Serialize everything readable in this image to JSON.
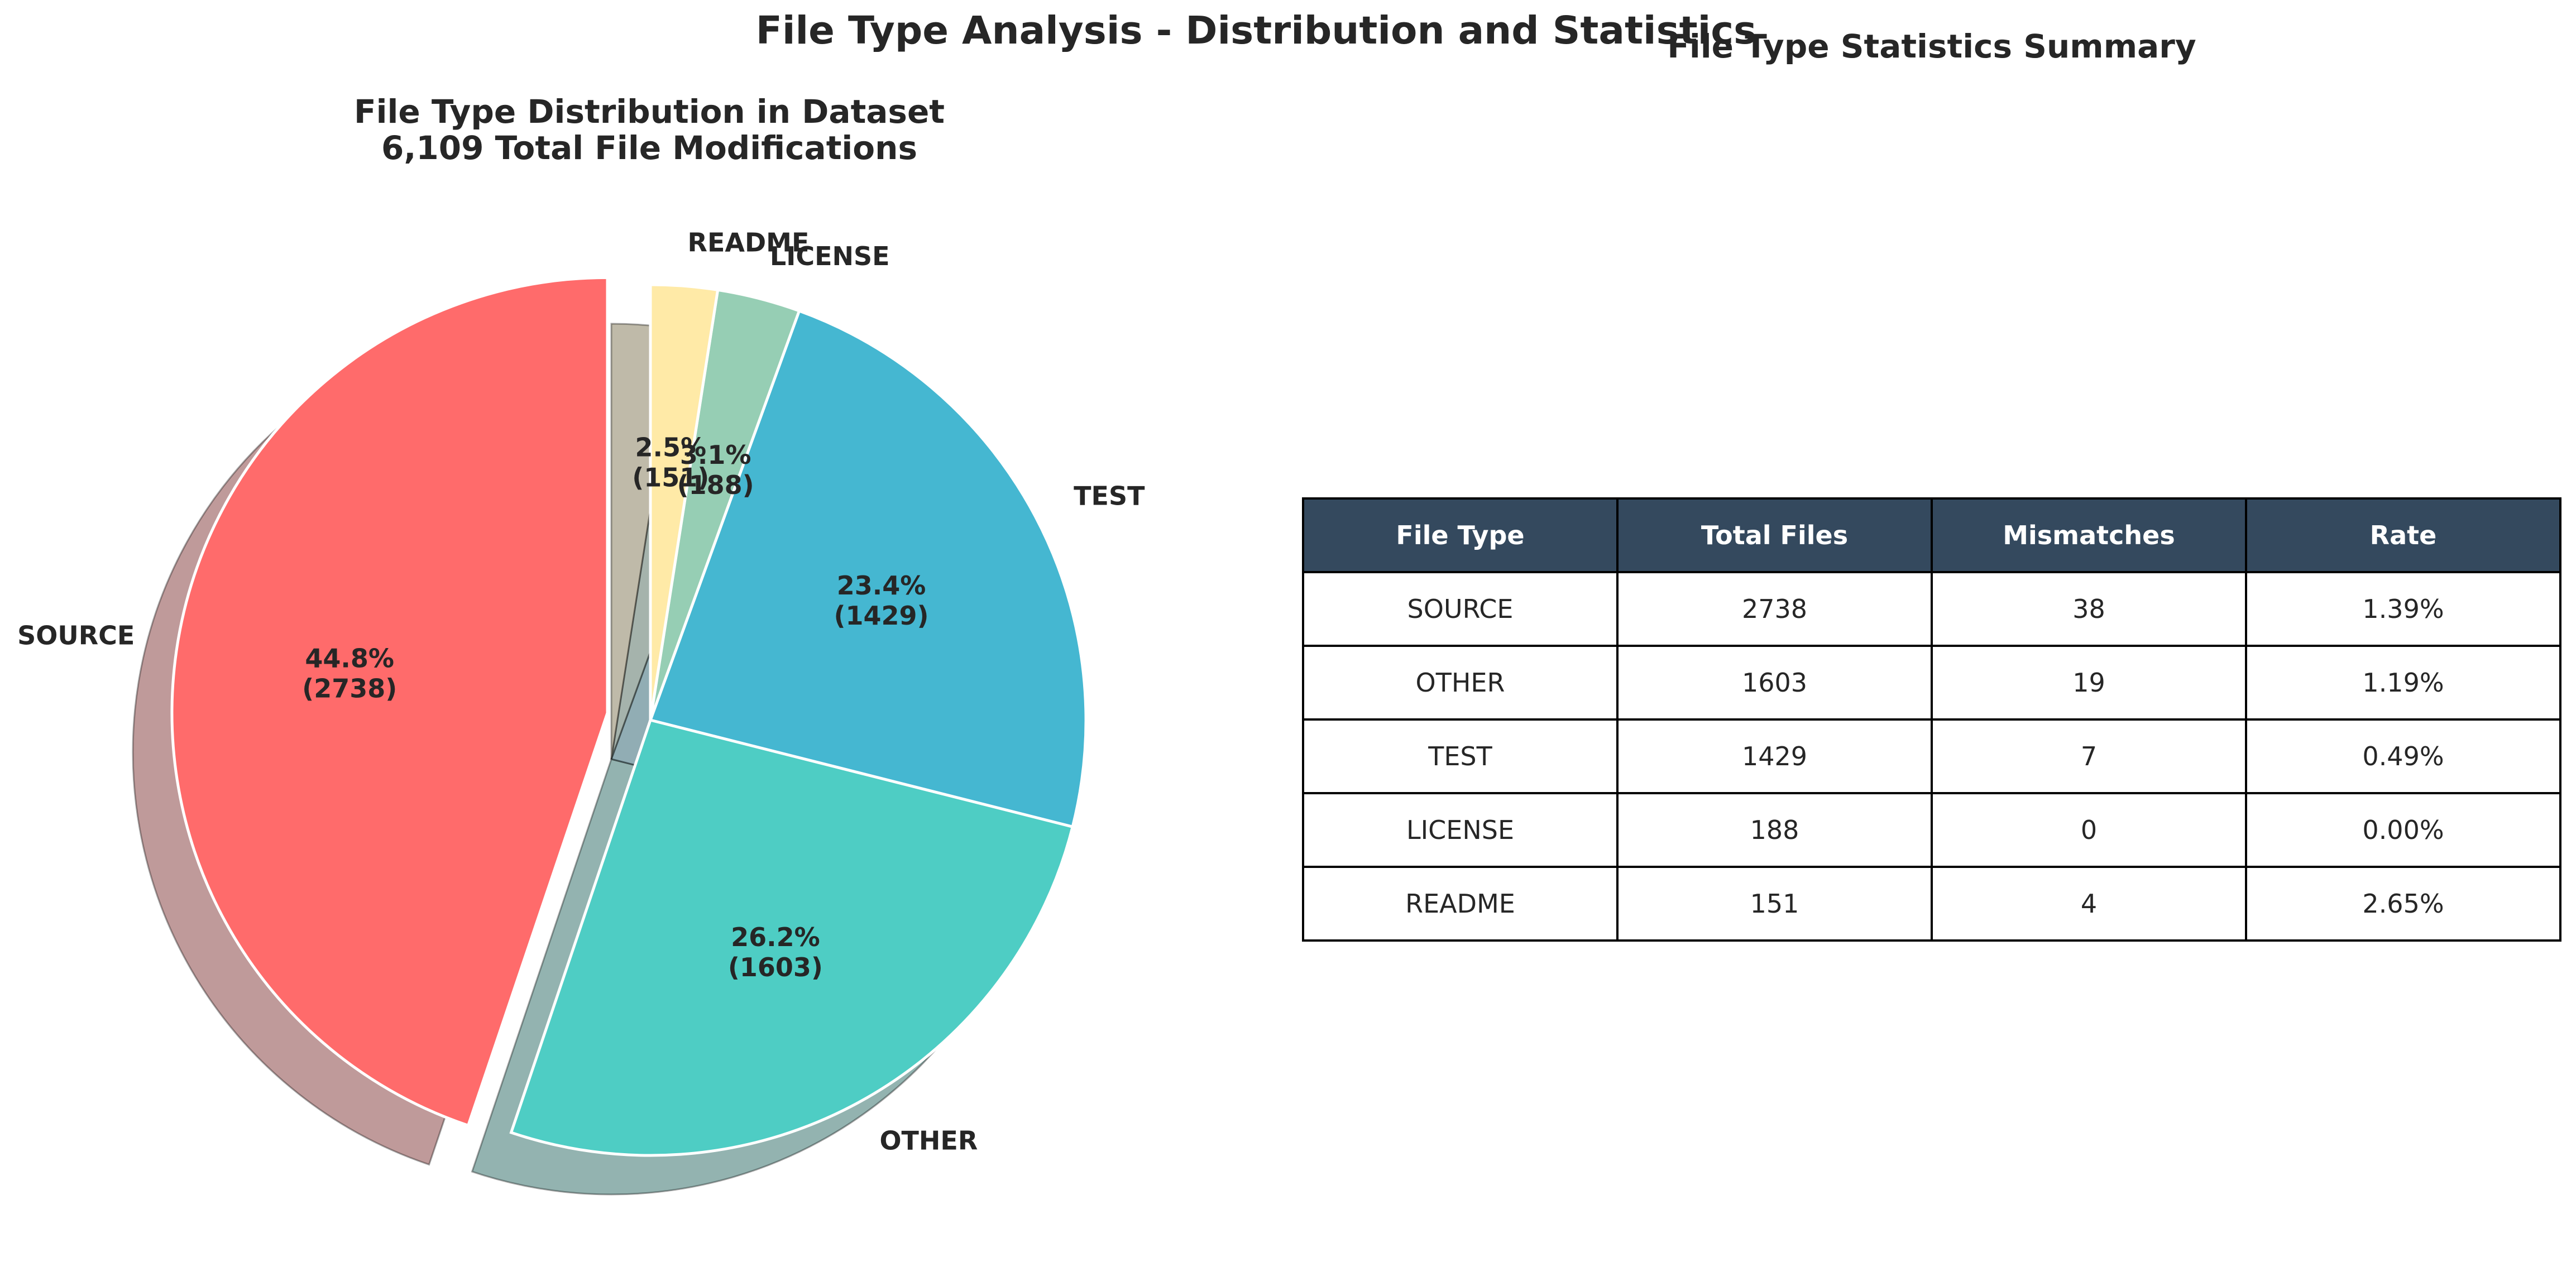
{
  "figure": {
    "suptitle": "File Type Analysis - Distribution and Statistics"
  },
  "pie": {
    "title_line1": "File Type Distribution in Dataset",
    "title_line2": "6,109 Total File Modifications"
  },
  "table": {
    "title": "File Type Statistics Summary",
    "header_color": "#34495e",
    "columns": [
      "File Type",
      "Total Files",
      "Mismatches",
      "Rate"
    ],
    "rows": [
      [
        "SOURCE",
        "2738",
        "38",
        "1.39%"
      ],
      [
        "OTHER",
        "1603",
        "19",
        "1.19%"
      ],
      [
        "TEST",
        "1429",
        "7",
        "0.49%"
      ],
      [
        "LICENSE",
        "188",
        "0",
        "0.00%"
      ],
      [
        "README",
        "151",
        "4",
        "2.65%"
      ]
    ]
  },
  "chart_data": [
    {
      "type": "pie",
      "title": "File Type Distribution in Dataset\n6,109 Total File Modifications",
      "start_angle_deg": 90,
      "direction": "counterclockwise",
      "shadow": true,
      "slices": [
        {
          "label": "SOURCE",
          "value": 2738,
          "pct_label": "44.8%",
          "count_label": "(2738)",
          "color": "#ff6b6b",
          "exploded": true
        },
        {
          "label": "OTHER",
          "value": 1603,
          "pct_label": "26.2%",
          "count_label": "(1603)",
          "color": "#4ecdc4",
          "exploded": false
        },
        {
          "label": "TEST",
          "value": 1429,
          "pct_label": "23.4%",
          "count_label": "(1429)",
          "color": "#45b7d1",
          "exploded": false
        },
        {
          "label": "LICENSE",
          "value": 188,
          "pct_label": "3.1%",
          "count_label": "(188)",
          "color": "#96ceb4",
          "exploded": false
        },
        {
          "label": "README",
          "value": 151,
          "pct_label": "2.5%",
          "count_label": "(151)",
          "color": "#ffeaa7",
          "exploded": false
        }
      ]
    },
    {
      "type": "table",
      "title": "File Type Statistics Summary",
      "columns": [
        "File Type",
        "Total Files",
        "Mismatches",
        "Rate"
      ],
      "rows": [
        [
          "SOURCE",
          2738,
          38,
          "1.39%"
        ],
        [
          "OTHER",
          1603,
          19,
          "1.19%"
        ],
        [
          "TEST",
          1429,
          7,
          "0.49%"
        ],
        [
          "LICENSE",
          188,
          0,
          "0.00%"
        ],
        [
          "README",
          151,
          4,
          "2.65%"
        ]
      ]
    }
  ]
}
